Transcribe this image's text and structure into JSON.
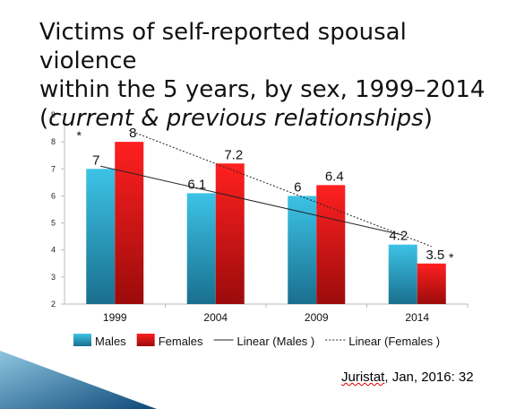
{
  "slide": {
    "title_line1": "Victims of self-reported spousal violence",
    "title_line2": "within the 5 years, by sex, 1999–2014",
    "title_paren_open": "(",
    "title_paren_text": "current & previous relationships",
    "title_paren_close": ")",
    "source_word": "Juristat",
    "source_rest": ", Jan, 2016: 32"
  },
  "colors": {
    "males": "#2ba7c9",
    "females": "#e01010",
    "axis": "#bbbbbb",
    "trend": "#222222"
  },
  "chart_data": {
    "type": "bar",
    "categories": [
      "1999",
      "2004",
      "2009",
      "2014"
    ],
    "series": [
      {
        "name": "Males",
        "values": [
          7,
          6.1,
          6,
          4.2
        ],
        "labels": [
          "7",
          "6.1",
          "6",
          "4.2"
        ]
      },
      {
        "name": "Females",
        "values": [
          8,
          7.2,
          6.4,
          3.5
        ],
        "labels": [
          "8",
          "7.2",
          "6.4",
          "3.5"
        ]
      }
    ],
    "trendlines": [
      {
        "name": "Linear (Males )",
        "series": "Males",
        "style": "solid"
      },
      {
        "name": "Linear (Females )",
        "series": "Females",
        "style": "dotted"
      }
    ],
    "ylim": [
      2,
      9
    ],
    "yticks": [
      "2",
      "3",
      "4",
      "5",
      "6",
      "7",
      "8",
      "9"
    ],
    "annotations": [
      {
        "text": "*",
        "category": "1999"
      },
      {
        "text": "*",
        "category": "2014"
      }
    ],
    "grid": false,
    "legend": "bottom"
  }
}
